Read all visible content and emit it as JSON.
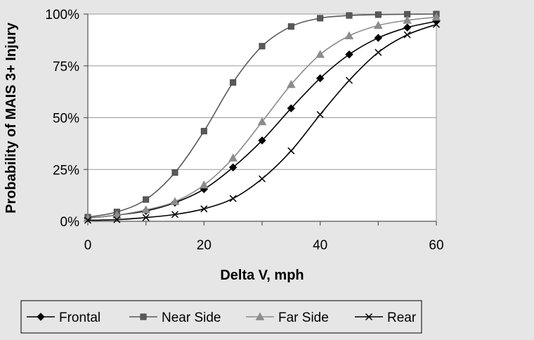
{
  "chart_data": {
    "type": "line",
    "title": "",
    "xlabel": "Delta V, mph",
    "ylabel": "Probability of MAIS 3+ Injury",
    "xlim": [
      0,
      60
    ],
    "ylim": [
      0,
      100
    ],
    "x_ticks": [
      0,
      20,
      40,
      60
    ],
    "x_tick_labels": [
      "0",
      "20",
      "40",
      "60"
    ],
    "y_ticks": [
      0,
      25,
      50,
      75,
      100
    ],
    "y_tick_labels": [
      "0%",
      "25%",
      "50%",
      "75%",
      "100%"
    ],
    "grid": "horizontal",
    "legend_position": "bottom",
    "x": [
      0,
      5,
      10,
      15,
      20,
      25,
      30,
      35,
      40,
      45,
      50,
      55,
      60
    ],
    "series": [
      {
        "name": "Frontal",
        "marker": "diamond",
        "color": "#000000",
        "values": [
          1.5,
          3,
          5,
          9,
          15.5,
          26,
          39,
          54.5,
          69,
          80.5,
          88.5,
          93.5,
          96.5
        ]
      },
      {
        "name": "Near Side",
        "marker": "square",
        "color": "#595959",
        "values": [
          2,
          4.5,
          10.5,
          23.5,
          43.5,
          67,
          84.5,
          94,
          98,
          99.3,
          99.7,
          99.9,
          100
        ]
      },
      {
        "name": "Far Side",
        "marker": "triangle",
        "color": "#8c8c8c",
        "values": [
          1.5,
          3,
          5.5,
          9.5,
          17.5,
          30.5,
          48,
          66,
          80.5,
          89.5,
          94.5,
          97,
          98.5
        ]
      },
      {
        "name": "Rear",
        "marker": "x",
        "color": "#000000",
        "values": [
          0.5,
          0.8,
          1.8,
          3.3,
          6,
          11,
          20.5,
          34,
          51.5,
          68,
          81.5,
          90,
          95
        ]
      }
    ]
  }
}
